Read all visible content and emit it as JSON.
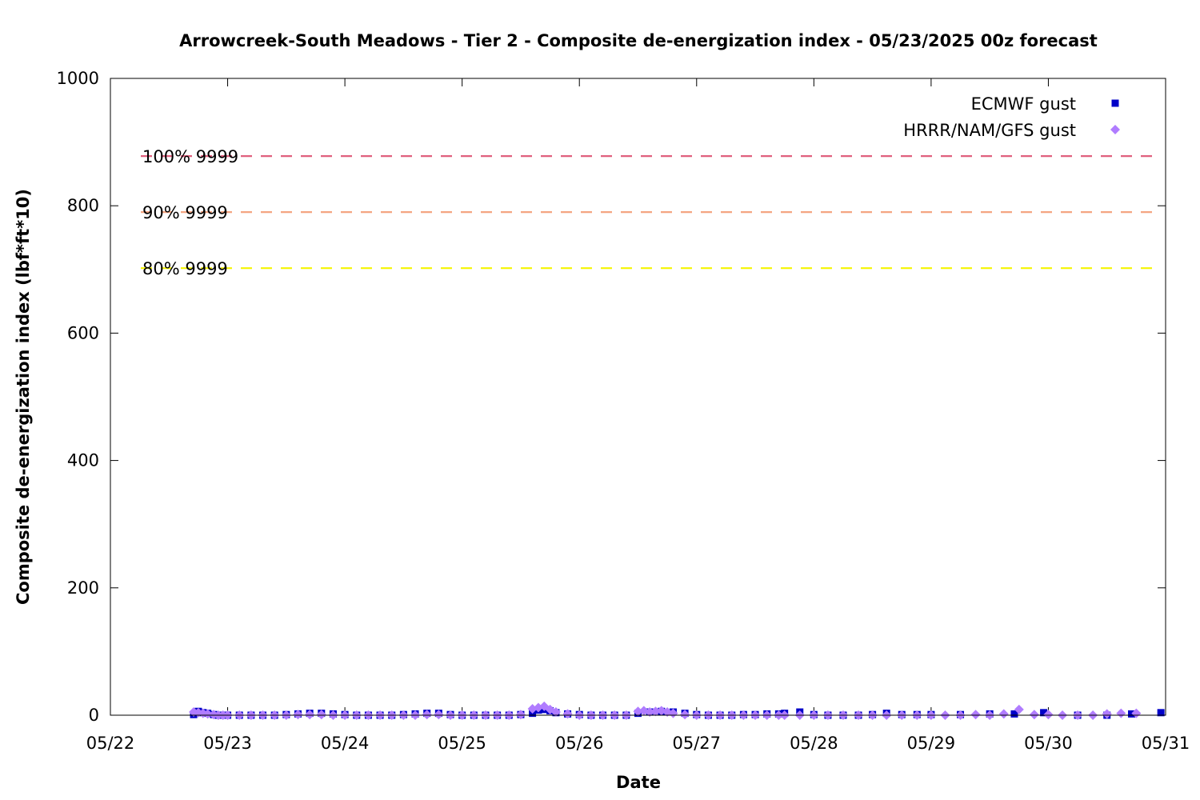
{
  "chart_data": {
    "type": "scatter",
    "title": "Arrowcreek-South Meadows - Tier 2 - Composite de-energization index - 05/23/2025 00z forecast",
    "xlabel": "Date",
    "ylabel": "Composite de-energization index (lbf*ft*10)",
    "x_ticks": [
      "05/22",
      "05/23",
      "05/24",
      "05/25",
      "05/26",
      "05/27",
      "05/28",
      "05/29",
      "05/30",
      "05/31"
    ],
    "x_range_days": [
      0,
      9
    ],
    "ylim": [
      0,
      1000
    ],
    "y_ticks": [
      0,
      200,
      400,
      600,
      800,
      1000
    ],
    "grid": false,
    "legend_position": "top-right",
    "thresholds": [
      {
        "label": "100% 9999",
        "value": 878,
        "color": "#e0607e"
      },
      {
        "label": "90% 9999",
        "value": 790,
        "color": "#f4a582"
      },
      {
        "label": "80% 9999",
        "value": 702,
        "color": "#f5f500"
      }
    ],
    "series": [
      {
        "name": "ECMWF gust",
        "marker": "square",
        "color": "#0000c8",
        "points": [
          [
            0.71,
            1
          ],
          [
            0.75,
            6
          ],
          [
            0.79,
            4
          ],
          [
            0.83,
            3
          ],
          [
            0.88,
            1
          ],
          [
            0.92,
            0
          ],
          [
            0.96,
            0
          ],
          [
            1.0,
            0
          ],
          [
            1.1,
            0
          ],
          [
            1.2,
            0
          ],
          [
            1.3,
            0
          ],
          [
            1.4,
            0
          ],
          [
            1.5,
            1
          ],
          [
            1.6,
            2
          ],
          [
            1.7,
            3
          ],
          [
            1.8,
            3
          ],
          [
            1.9,
            2
          ],
          [
            2.0,
            1
          ],
          [
            2.1,
            0
          ],
          [
            2.2,
            0
          ],
          [
            2.3,
            0
          ],
          [
            2.4,
            0
          ],
          [
            2.5,
            1
          ],
          [
            2.6,
            2
          ],
          [
            2.7,
            3
          ],
          [
            2.8,
            3
          ],
          [
            2.9,
            1
          ],
          [
            3.0,
            0
          ],
          [
            3.1,
            0
          ],
          [
            3.2,
            0
          ],
          [
            3.3,
            0
          ],
          [
            3.4,
            0
          ],
          [
            3.5,
            1
          ],
          [
            3.6,
            3
          ],
          [
            3.65,
            8
          ],
          [
            3.7,
            9
          ],
          [
            3.75,
            7
          ],
          [
            3.8,
            4
          ],
          [
            3.9,
            2
          ],
          [
            4.0,
            1
          ],
          [
            4.1,
            0
          ],
          [
            4.2,
            0
          ],
          [
            4.3,
            0
          ],
          [
            4.4,
            0
          ],
          [
            4.5,
            3
          ],
          [
            4.6,
            5
          ],
          [
            4.7,
            6
          ],
          [
            4.8,
            5
          ],
          [
            4.9,
            3
          ],
          [
            5.0,
            1
          ],
          [
            5.1,
            0
          ],
          [
            5.2,
            0
          ],
          [
            5.3,
            0
          ],
          [
            5.4,
            1
          ],
          [
            5.5,
            1
          ],
          [
            5.6,
            2
          ],
          [
            5.7,
            2
          ],
          [
            5.75,
            3
          ],
          [
            5.88,
            5
          ],
          [
            6.0,
            1
          ],
          [
            6.12,
            0
          ],
          [
            6.25,
            0
          ],
          [
            6.38,
            0
          ],
          [
            6.5,
            1
          ],
          [
            6.62,
            3
          ],
          [
            6.75,
            1
          ],
          [
            6.88,
            1
          ],
          [
            7.0,
            1
          ],
          [
            7.25,
            1
          ],
          [
            7.5,
            2
          ],
          [
            7.71,
            2
          ],
          [
            7.96,
            4
          ],
          [
            8.25,
            0
          ],
          [
            8.5,
            0
          ],
          [
            8.71,
            2
          ],
          [
            8.96,
            4
          ]
        ]
      },
      {
        "name": "HRRR/NAM/GFS gust",
        "marker": "diamond",
        "color": "#b07cff",
        "points": [
          [
            0.71,
            5
          ],
          [
            0.75,
            4
          ],
          [
            0.79,
            3
          ],
          [
            0.83,
            2
          ],
          [
            0.88,
            1
          ],
          [
            0.92,
            0
          ],
          [
            0.96,
            0
          ],
          [
            1.0,
            0
          ],
          [
            1.1,
            0
          ],
          [
            1.2,
            0
          ],
          [
            1.3,
            0
          ],
          [
            1.4,
            0
          ],
          [
            1.5,
            0
          ],
          [
            1.6,
            1
          ],
          [
            1.7,
            1
          ],
          [
            1.8,
            1
          ],
          [
            1.9,
            0
          ],
          [
            2.0,
            0
          ],
          [
            2.1,
            0
          ],
          [
            2.2,
            0
          ],
          [
            2.3,
            0
          ],
          [
            2.4,
            0
          ],
          [
            2.5,
            0
          ],
          [
            2.6,
            0
          ],
          [
            2.7,
            1
          ],
          [
            2.8,
            1
          ],
          [
            2.9,
            0
          ],
          [
            3.0,
            0
          ],
          [
            3.1,
            0
          ],
          [
            3.2,
            0
          ],
          [
            3.3,
            0
          ],
          [
            3.4,
            0
          ],
          [
            3.5,
            1
          ],
          [
            3.6,
            10
          ],
          [
            3.65,
            12
          ],
          [
            3.7,
            14
          ],
          [
            3.75,
            9
          ],
          [
            3.8,
            5
          ],
          [
            3.9,
            2
          ],
          [
            4.0,
            0
          ],
          [
            4.1,
            0
          ],
          [
            4.2,
            0
          ],
          [
            4.3,
            0
          ],
          [
            4.4,
            0
          ],
          [
            4.5,
            6
          ],
          [
            4.55,
            7
          ],
          [
            4.6,
            5
          ],
          [
            4.65,
            6
          ],
          [
            4.7,
            7
          ],
          [
            4.75,
            5
          ],
          [
            4.8,
            3
          ],
          [
            4.9,
            1
          ],
          [
            5.0,
            0
          ],
          [
            5.1,
            0
          ],
          [
            5.2,
            0
          ],
          [
            5.3,
            0
          ],
          [
            5.4,
            0
          ],
          [
            5.5,
            0
          ],
          [
            5.6,
            0
          ],
          [
            5.7,
            0
          ],
          [
            5.75,
            0
          ],
          [
            5.88,
            0
          ],
          [
            6.0,
            0
          ],
          [
            6.12,
            0
          ],
          [
            6.25,
            0
          ],
          [
            6.38,
            0
          ],
          [
            6.5,
            0
          ],
          [
            6.62,
            0
          ],
          [
            6.75,
            0
          ],
          [
            6.88,
            0
          ],
          [
            7.0,
            0
          ],
          [
            7.12,
            0
          ],
          [
            7.25,
            0
          ],
          [
            7.38,
            1
          ],
          [
            7.5,
            0
          ],
          [
            7.62,
            2
          ],
          [
            7.75,
            9
          ],
          [
            7.88,
            1
          ],
          [
            8.0,
            1
          ],
          [
            8.12,
            0
          ],
          [
            8.25,
            0
          ],
          [
            8.38,
            0
          ],
          [
            8.5,
            2
          ],
          [
            8.62,
            3
          ],
          [
            8.75,
            3
          ]
        ]
      }
    ]
  }
}
